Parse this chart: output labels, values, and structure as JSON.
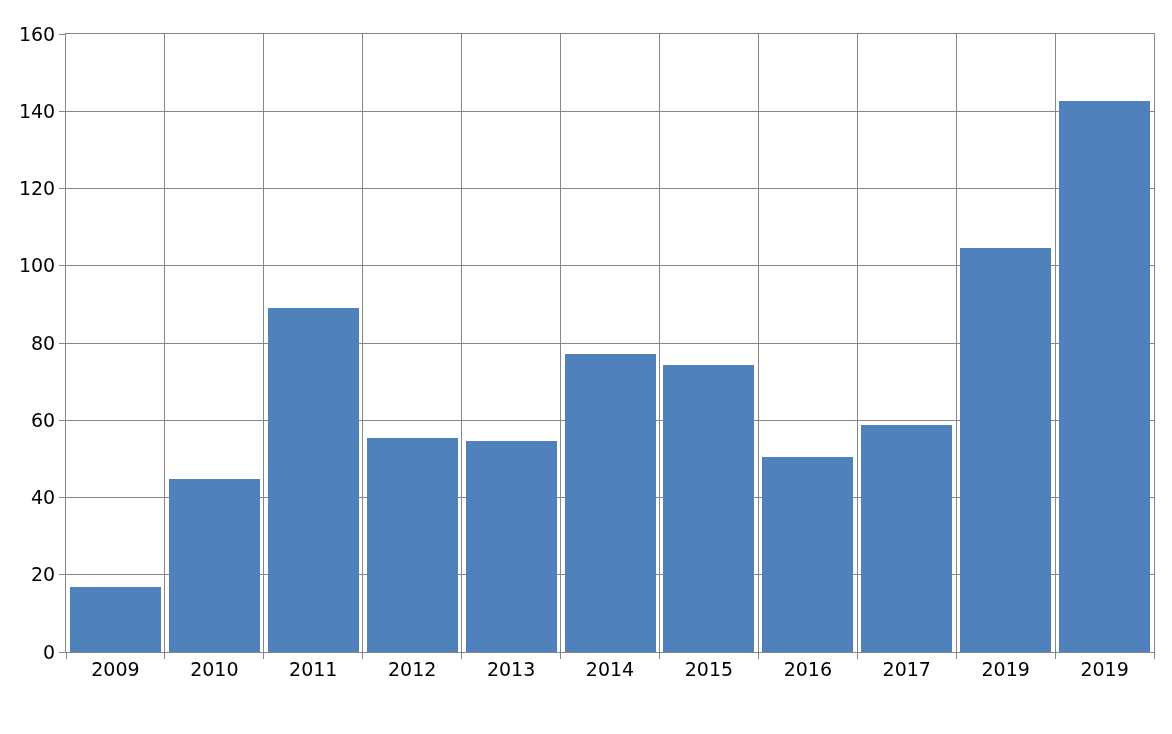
{
  "chart_data": {
    "type": "bar",
    "categories": [
      "2009",
      "2010",
      "2011",
      "2012",
      "2013",
      "2014",
      "2015",
      "2016",
      "2017",
      "2019",
      "2019"
    ],
    "values": [
      16.8,
      44.8,
      89.1,
      55.4,
      54.6,
      77.2,
      74.3,
      50.5,
      58.8,
      104.6,
      142.7
    ],
    "color": "#4f81bd",
    "ylim": [
      0,
      160
    ],
    "yticks": [
      0,
      20,
      40,
      60,
      80,
      100,
      120,
      140,
      160
    ],
    "grid": true
  }
}
